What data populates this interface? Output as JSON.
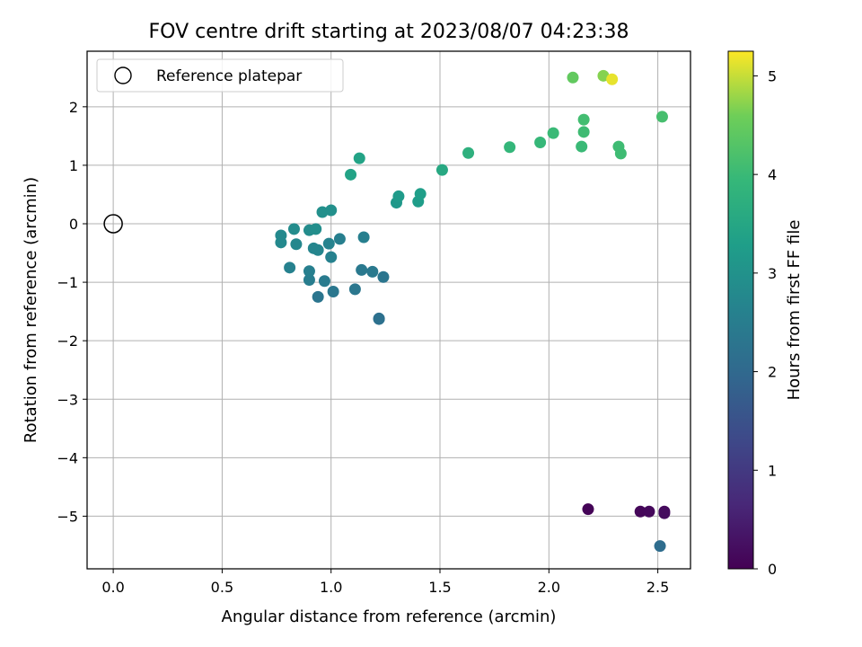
{
  "chart_data": {
    "type": "scatter",
    "title": "FOV centre drift starting at 2023/08/07 04:23:38",
    "xlabel": "Angular distance from reference (arcmin)",
    "ylabel": "Rotation from reference (arcmin)",
    "xlim": [
      -0.12,
      2.65
    ],
    "ylim": [
      -5.9,
      2.95
    ],
    "xticks": [
      0.0,
      0.5,
      1.0,
      1.5,
      2.0,
      2.5
    ],
    "xtick_labels": [
      "0.0",
      "0.5",
      "1.0",
      "1.5",
      "2.0",
      "2.5"
    ],
    "yticks": [
      2,
      1,
      0,
      -1,
      -2,
      -3,
      -4,
      -5
    ],
    "ytick_labels": [
      "2",
      "1",
      "0",
      "−1",
      "−2",
      "−3",
      "−4",
      "−5"
    ],
    "grid": true,
    "legend": {
      "position": "upper-left",
      "entries": [
        {
          "label": "Reference platepar",
          "marker": "open-circle"
        }
      ]
    },
    "reference_point": {
      "x": 0.0,
      "y": 0.0
    },
    "colorbar": {
      "label": "Hours from first FF file",
      "colormap": "viridis",
      "range": [
        0,
        5.25
      ],
      "ticks": [
        0,
        1,
        2,
        3,
        4,
        5
      ],
      "tick_labels": [
        "0",
        "1",
        "2",
        "3",
        "4",
        "5"
      ]
    },
    "series": [
      {
        "points": [
          {
            "x": 2.18,
            "y": -4.88,
            "c": 0.05
          },
          {
            "x": 2.42,
            "y": -4.92,
            "c": 0.1
          },
          {
            "x": 2.46,
            "y": -4.92,
            "c": 0.12
          },
          {
            "x": 2.53,
            "y": -4.92,
            "c": 0.15
          },
          {
            "x": 2.53,
            "y": -4.95,
            "c": 0.18
          },
          {
            "x": 2.51,
            "y": -5.51,
            "c": 2.1
          },
          {
            "x": 1.22,
            "y": -1.62,
            "c": 2.15
          },
          {
            "x": 1.22,
            "y": -1.63,
            "c": 2.2
          },
          {
            "x": 0.94,
            "y": -1.25,
            "c": 2.3
          },
          {
            "x": 1.01,
            "y": -1.16,
            "c": 2.35
          },
          {
            "x": 1.11,
            "y": -1.12,
            "c": 2.35
          },
          {
            "x": 1.24,
            "y": -0.91,
            "c": 2.3
          },
          {
            "x": 1.19,
            "y": -0.82,
            "c": 2.4
          },
          {
            "x": 1.14,
            "y": -0.79,
            "c": 2.4
          },
          {
            "x": 0.97,
            "y": -0.98,
            "c": 2.45
          },
          {
            "x": 0.9,
            "y": -0.96,
            "c": 2.5
          },
          {
            "x": 0.9,
            "y": -0.81,
            "c": 2.55
          },
          {
            "x": 0.81,
            "y": -0.75,
            "c": 2.6
          },
          {
            "x": 1.0,
            "y": -0.57,
            "c": 2.6
          },
          {
            "x": 1.04,
            "y": -0.26,
            "c": 2.55
          },
          {
            "x": 1.15,
            "y": -0.23,
            "c": 2.55
          },
          {
            "x": 0.99,
            "y": -0.34,
            "c": 2.65
          },
          {
            "x": 0.94,
            "y": -0.45,
            "c": 2.7
          },
          {
            "x": 0.92,
            "y": -0.42,
            "c": 2.7
          },
          {
            "x": 0.84,
            "y": -0.35,
            "c": 2.75
          },
          {
            "x": 0.77,
            "y": -0.32,
            "c": 2.8
          },
          {
            "x": 0.77,
            "y": -0.2,
            "c": 2.8
          },
          {
            "x": 0.83,
            "y": -0.09,
            "c": 2.85
          },
          {
            "x": 0.9,
            "y": -0.11,
            "c": 2.85
          },
          {
            "x": 0.93,
            "y": -0.09,
            "c": 2.9
          },
          {
            "x": 0.96,
            "y": 0.2,
            "c": 2.95
          },
          {
            "x": 1.0,
            "y": 0.23,
            "c": 2.95
          },
          {
            "x": 1.3,
            "y": 0.36,
            "c": 3.15
          },
          {
            "x": 1.31,
            "y": 0.47,
            "c": 3.2
          },
          {
            "x": 1.4,
            "y": 0.38,
            "c": 3.25
          },
          {
            "x": 1.41,
            "y": 0.51,
            "c": 3.3
          },
          {
            "x": 1.09,
            "y": 0.84,
            "c": 3.4
          },
          {
            "x": 1.13,
            "y": 1.12,
            "c": 3.4
          },
          {
            "x": 1.51,
            "y": 0.92,
            "c": 3.55
          },
          {
            "x": 1.63,
            "y": 1.21,
            "c": 3.75
          },
          {
            "x": 1.82,
            "y": 1.31,
            "c": 3.9
          },
          {
            "x": 1.96,
            "y": 1.39,
            "c": 3.95
          },
          {
            "x": 2.02,
            "y": 1.55,
            "c": 4.0
          },
          {
            "x": 2.15,
            "y": 1.32,
            "c": 4.0
          },
          {
            "x": 2.16,
            "y": 1.57,
            "c": 4.05
          },
          {
            "x": 2.16,
            "y": 1.78,
            "c": 4.1
          },
          {
            "x": 2.32,
            "y": 1.32,
            "c": 4.05
          },
          {
            "x": 2.33,
            "y": 1.2,
            "c": 4.05
          },
          {
            "x": 2.52,
            "y": 1.83,
            "c": 4.15
          },
          {
            "x": 2.11,
            "y": 2.5,
            "c": 4.45
          },
          {
            "x": 2.25,
            "y": 2.53,
            "c": 4.7
          },
          {
            "x": 2.29,
            "y": 2.47,
            "c": 5.15
          }
        ]
      }
    ]
  }
}
